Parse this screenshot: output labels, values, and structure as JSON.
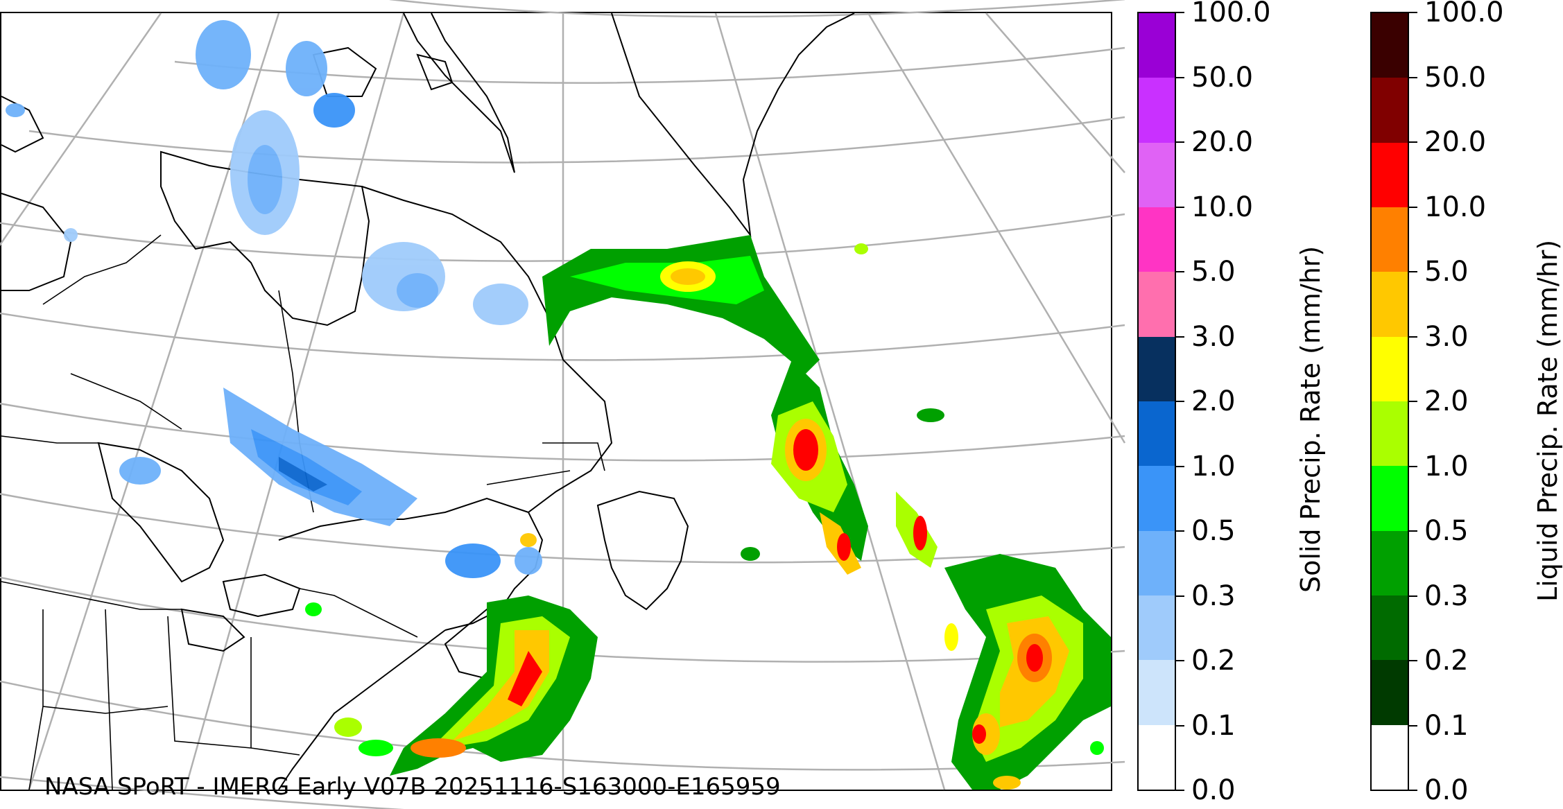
{
  "caption": "NASA SPoRT - IMERG Early V07B 20251116-S163000-E165959",
  "solid_colorbar": {
    "label": "Solid Precip. Rate (mm/hr)",
    "ticks": [
      "0.0",
      "0.1",
      "0.2",
      "0.3",
      "0.5",
      "1.0",
      "2.0",
      "3.0",
      "5.0",
      "10.0",
      "20.0",
      "50.0",
      "100.0"
    ],
    "colors": [
      "#ffffff",
      "#cde4fb",
      "#9fcbfb",
      "#6eb1fa",
      "#3a94f8",
      "#0a66cf",
      "#07305f",
      "#ff6fae",
      "#ff34c4",
      "#e062f5",
      "#c930ff",
      "#9a00d6"
    ]
  },
  "liquid_colorbar": {
    "label": "Liquid Precip. Rate (mm/hr)",
    "ticks": [
      "0.0",
      "0.1",
      "0.2",
      "0.3",
      "0.5",
      "1.0",
      "2.0",
      "3.0",
      "5.0",
      "10.0",
      "20.0",
      "50.0",
      "100.0"
    ],
    "colors": [
      "#ffffff",
      "#003a00",
      "#006b00",
      "#00a000",
      "#00ff00",
      "#aaff00",
      "#ffff00",
      "#ffc800",
      "#ff8000",
      "#ff0000",
      "#800000",
      "#3a0000"
    ]
  }
}
